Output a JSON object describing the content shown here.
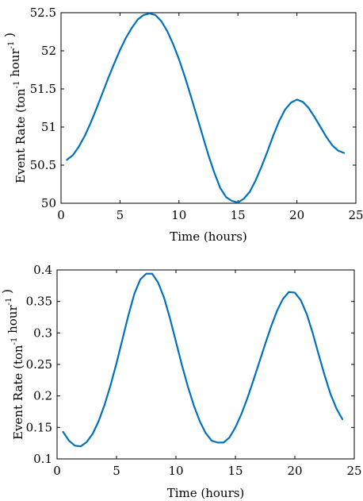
{
  "chart_data": [
    {
      "type": "line",
      "xlabel": "Time (hours)",
      "ylabel_main": "Event Rate (ton",
      "ylabel_sup1": "-1",
      "ylabel_mid": " hour",
      "ylabel_sup2": "-1",
      "ylabel_end": " )",
      "xlim": [
        0,
        25
      ],
      "ylim": [
        50,
        52.5
      ],
      "xticks": [
        0,
        5,
        10,
        15,
        20,
        25
      ],
      "yticks": [
        50,
        50.5,
        51,
        51.5,
        52,
        52.5
      ],
      "ytick_labels": [
        "50",
        "50.5",
        "51",
        "51.5",
        "52",
        "52.5"
      ],
      "grid": false,
      "color": "#0072bd",
      "series": [
        {
          "x": [
            0.5,
            1,
            1.5,
            2,
            2.5,
            3,
            3.5,
            4,
            4.5,
            5,
            5.5,
            6,
            6.5,
            7,
            7.5,
            8,
            8.5,
            9,
            9.5,
            10,
            10.5,
            11,
            11.5,
            12,
            12.5,
            13,
            13.5,
            14,
            14.5,
            15,
            15.5,
            16,
            16.5,
            17,
            17.5,
            18,
            18.5,
            19,
            19.5,
            20,
            20.5,
            21,
            21.5,
            22,
            22.5,
            23,
            23.5,
            24
          ],
          "y": [
            50.57,
            50.63,
            50.74,
            50.88,
            51.05,
            51.24,
            51.44,
            51.64,
            51.83,
            52.01,
            52.17,
            52.3,
            52.41,
            52.47,
            52.49,
            52.47,
            52.39,
            52.26,
            52.09,
            51.89,
            51.66,
            51.41,
            51.15,
            50.89,
            50.63,
            50.4,
            50.2,
            50.08,
            50.03,
            50.01,
            50.06,
            50.15,
            50.3,
            50.48,
            50.68,
            50.89,
            51.08,
            51.23,
            51.32,
            51.36,
            51.33,
            51.25,
            51.13,
            51.0,
            50.87,
            50.76,
            50.69,
            50.66
          ]
        }
      ]
    },
    {
      "type": "line",
      "xlabel": "Time (hours)",
      "ylabel_main": "Event Rate (ton",
      "ylabel_sup1": "-1",
      "ylabel_mid": " hour",
      "ylabel_sup2": "-1",
      "ylabel_end": " )",
      "xlim": [
        0,
        25
      ],
      "ylim": [
        0.1,
        0.4
      ],
      "xticks": [
        0,
        5,
        10,
        15,
        20,
        25
      ],
      "yticks": [
        0.1,
        0.15,
        0.2,
        0.25,
        0.3,
        0.35,
        0.4
      ],
      "ytick_labels": [
        "0.1",
        "0.15",
        "0.2",
        "0.25",
        "0.3",
        "0.35",
        "0.4"
      ],
      "grid": false,
      "color": "#0072bd",
      "series": [
        {
          "x": [
            0.5,
            1,
            1.5,
            2,
            2.5,
            3,
            3.5,
            4,
            4.5,
            5,
            5.5,
            6,
            6.5,
            7,
            7.5,
            8,
            8.5,
            9,
            9.5,
            10,
            10.5,
            11,
            11.5,
            12,
            12.5,
            13,
            13.5,
            14,
            14.5,
            15,
            15.5,
            16,
            16.5,
            17,
            17.5,
            18,
            18.5,
            19,
            19.5,
            20,
            20.5,
            21,
            21.5,
            22,
            22.5,
            23,
            23.5,
            24
          ],
          "y": [
            0.143,
            0.129,
            0.121,
            0.12,
            0.127,
            0.14,
            0.16,
            0.186,
            0.217,
            0.252,
            0.29,
            0.328,
            0.362,
            0.385,
            0.394,
            0.394,
            0.38,
            0.356,
            0.323,
            0.286,
            0.249,
            0.215,
            0.185,
            0.16,
            0.141,
            0.129,
            0.126,
            0.126,
            0.134,
            0.15,
            0.171,
            0.196,
            0.224,
            0.253,
            0.282,
            0.31,
            0.335,
            0.354,
            0.365,
            0.364,
            0.352,
            0.33,
            0.3,
            0.266,
            0.233,
            0.203,
            0.18,
            0.163
          ]
        }
      ]
    }
  ]
}
